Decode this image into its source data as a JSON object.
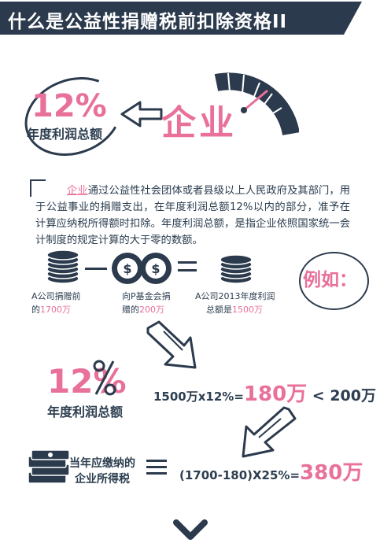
{
  "header": {
    "title": "什么是公益性捐赠税前扣除资格II"
  },
  "top": {
    "percent": "12%",
    "percent_label": "年度利润总额",
    "enterprise": "企业"
  },
  "paragraph": {
    "highlight": "企业",
    "text": "通过公益性社会团体或者县级以上人民政府及其部门，用于公益事业的捐赠支出，在年度利润总额12%以内的部分，准予在计算应纳税所得额时扣除。年度利润总额，是指企业依照国家统一会计制度的规定计算的大于零的数额。"
  },
  "example": {
    "label": "例如：",
    "items": [
      {
        "line1": "A公司捐赠前",
        "line2_prefix": "的",
        "value": "1700万"
      },
      {
        "line1": "向P基金会捐",
        "line2_prefix": "赠的",
        "value": "200万"
      },
      {
        "line1": "A公司2013年度利润",
        "line2_prefix": "总额是",
        "value": "1500万"
      }
    ]
  },
  "middle": {
    "percent": "12%",
    "percent_label": "年度利润总额",
    "calc_prefix": "1500万x12%=",
    "calc_result": "180万",
    "calc_compare": " < 200万"
  },
  "bottom": {
    "tax_label_line1": "当年应缴纳的",
    "tax_label_line2": "企业所得税",
    "calc_prefix": "(1700-180)X25%=",
    "calc_result": "380万"
  },
  "colors": {
    "navy": "#2b3a4d",
    "pink": "#e8709a",
    "white": "#ffffff"
  },
  "icons": [
    "coin-stack-icon",
    "coin-dollar-icon",
    "cash-stack-icon",
    "gauge-icon",
    "arrow-icon",
    "chevron-down-icon"
  ]
}
